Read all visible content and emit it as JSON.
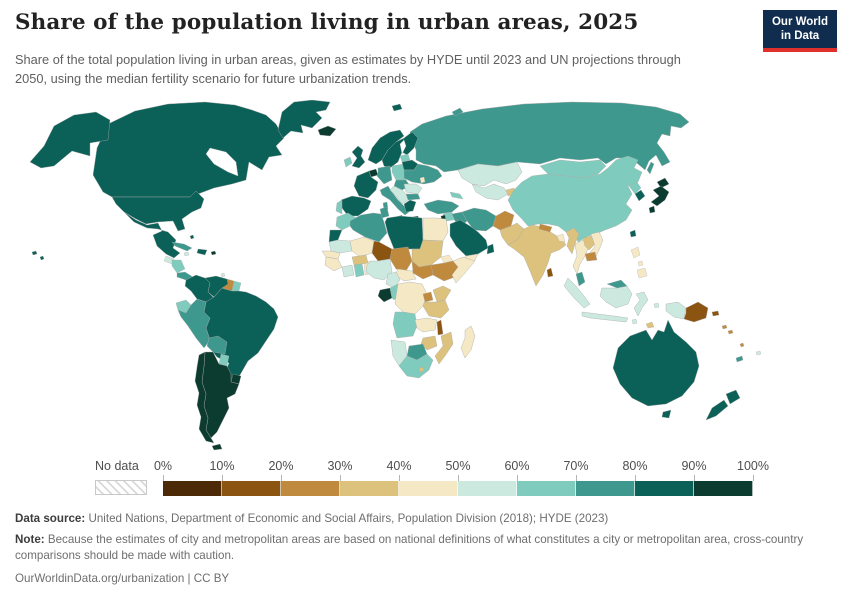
{
  "header": {
    "title": "Share of the population living in urban areas, 2025",
    "subtitle": "Share of the total population living in urban areas, given as estimates by HYDE until 2023 and UN projections through 2050, using the median fertility scenario for future urbanization trends.",
    "logo": {
      "line1": "Our World",
      "line2": "in Data",
      "bg_color": "#102D50",
      "accent_color": "#E0302B"
    }
  },
  "legend": {
    "no_data_label": "No data",
    "tick_labels": [
      "0%",
      "10%",
      "20%",
      "30%",
      "40%",
      "50%",
      "60%",
      "70%",
      "80%",
      "90%",
      "100%"
    ],
    "colors": [
      "#4D2A07",
      "#8B5411",
      "#C08A3E",
      "#DCC27C",
      "#F4E8C5",
      "#CBE9DF",
      "#7FCCBE",
      "#3F988E",
      "#0B6158",
      "#0C3B30"
    ]
  },
  "footer": {
    "data_source_label": "Data source:",
    "data_source": " United Nations, Department of Economic and Social Affairs, Population Division (2018); HYDE (2023)",
    "note_label": "Note:",
    "note": " Because the estimates of city and metropolitan areas are based on national definitions of what constitutes a city or metropolitan area, cross-country comparisons should be made with caution.",
    "url_line": "OurWorldinData.org/urbanization | CC BY"
  },
  "chart_data": {
    "type": "choropleth",
    "metric": "Share of population living in urban areas",
    "year": 2025,
    "unit": "%",
    "value_range": [
      0,
      100
    ],
    "bucket_size": 10,
    "countries": {
      "Canada": 82,
      "United States": 84,
      "Mexico": 81,
      "Greenland": 87,
      "Guatemala": 53,
      "Honduras": 60,
      "Panama": 70,
      "Cuba": 77,
      "Dominican Republic": 85,
      "Jamaica": 57,
      "Puerto Rico": 94,
      "Bahamas": 84,
      "Trinidad and Tobago": 54,
      "Colombia": 82,
      "Venezuela": 88,
      "Guyana": 27,
      "Suriname": 66,
      "Ecuador": 65,
      "Peru": 79,
      "Brazil": 88,
      "Bolivia": 71,
      "Paraguay": 63,
      "Uruguay": 96,
      "Argentina": 93,
      "Chile": 91,
      "Iceland": 94,
      "Norway": 84,
      "Sweden": 89,
      "Finland": 86,
      "Denmark": 89,
      "United Kingdom": 85,
      "Ireland": 65,
      "Netherlands": 94,
      "Germany": 78,
      "France": 82,
      "Spain": 82,
      "Portugal": 68,
      "Italy": 72,
      "Poland": 60,
      "Czechia": 75,
      "Lithuania": 69,
      "Belarus": 81,
      "Ukraine": 70,
      "Moldova": 44,
      "Romania": 55,
      "Bulgaria": 77,
      "Serbia": 57,
      "Greece": 81,
      "Russia": 75,
      "Turkey": 78,
      "Georgia": 61,
      "Syria": 60,
      "Israel": 93,
      "Iraq": 72,
      "Iran": 78,
      "Saudi Arabia": 85,
      "Yemen": 41,
      "Oman": 88,
      "Kazakhstan": 58,
      "Uzbekistan": 51,
      "Kyrgyzstan": 38,
      "Afghanistan": 27,
      "Pakistan": 34,
      "India": 37,
      "Nepal": 22,
      "Bangladesh": 42,
      "Sri Lanka": 19,
      "Myanmar": 33,
      "Thailand": 48,
      "Laos": 39,
      "Vietnam": 41,
      "Cambodia": 26,
      "Malaysia": 79,
      "Indonesia": 59,
      "Timor-Leste": 32,
      "Philippines": 48,
      "China": 67,
      "Mongolia": 69,
      "North Korea": 63,
      "South Korea": 82,
      "Japan": 92,
      "Taiwan": 80,
      "Papua New Guinea": 13,
      "Morocco": 66,
      "Western Sahara": 87,
      "Algeria": 75,
      "Tunisia": 71,
      "Libya": 82,
      "Egypt": 43,
      "Mauritania": 58,
      "Mali": 46,
      "Niger": 17,
      "Chad": 24,
      "Sudan": 36,
      "South Sudan": 21,
      "Eritrea": 44,
      "Ethiopia": 23,
      "Somalia": 48,
      "Senegal": 49,
      "Guinea": 44,
      "Cote d'Ivoire": 53,
      "Ghana": 60,
      "Benin": 46,
      "Burkina Faso": 32,
      "Nigeria": 54,
      "Cameroon": 59,
      "Central African Republic": 43,
      "Gabon": 91,
      "Congo": 69,
      "Democratic Republic of Congo": 47,
      "Uganda": 27,
      "Kenya": 30,
      "Tanzania": 37,
      "Angola": 68,
      "Zambia": 46,
      "Malawi": 18,
      "Mozambique": 39,
      "Zimbabwe": 32,
      "Botswana": 72,
      "Namibia": 55,
      "South Africa": 69,
      "Lesotho": 31,
      "Madagascar": 40,
      "Australia": 87,
      "New Zealand": 87,
      "Fiji": 58,
      "Solomon Islands": 26,
      "Vanuatu": 26,
      "New Caledonia": 72
    }
  }
}
